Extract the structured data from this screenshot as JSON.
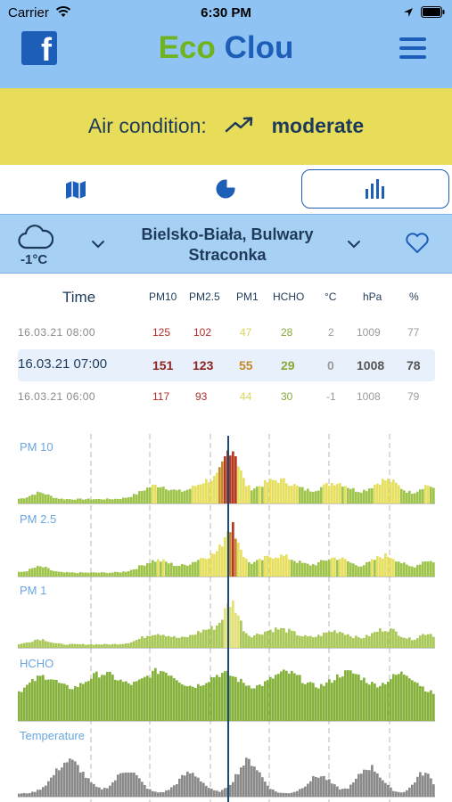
{
  "status": {
    "carrier": "Carrier",
    "time": "6:30 PM"
  },
  "header": {
    "logo_part1": "Eco",
    "logo_part2": "Clou",
    "facebook_letter": "f"
  },
  "banner": {
    "label": "Air condition:",
    "value": "moderate"
  },
  "location": {
    "temperature": "-1°C",
    "station_line1": "Bielsko-Biała, Bulwary",
    "station_line2": "Straconka"
  },
  "table": {
    "headers": [
      "Time",
      "PM10",
      "PM2.5",
      "PM1",
      "HCHO",
      "°C",
      "hPa",
      "%"
    ],
    "rows": [
      {
        "time": "16.03.21  08:00",
        "pm10": "125",
        "pm25": "102",
        "pm1": "47",
        "hcho": "28",
        "temp": "2",
        "hpa": "1009",
        "hum": "77"
      },
      {
        "time": "16.03.21  07:00",
        "pm10": "151",
        "pm25": "123",
        "pm1": "55",
        "hcho": "29",
        "temp": "0",
        "hpa": "1008",
        "hum": "78"
      },
      {
        "time": "16.03.21  06:00",
        "pm10": "117",
        "pm25": "93",
        "pm1": "44",
        "hcho": "30",
        "temp": "-1",
        "hpa": "1008",
        "hum": "79"
      }
    ]
  },
  "charts": {
    "labels": [
      "PM 10",
      "PM 2.5",
      "PM 1",
      "HCHO",
      "Temperature"
    ]
  },
  "colors": {
    "header_bg": "#8fc3f3",
    "banner_bg": "#e8dd59",
    "brand_blue": "#1d5fb8",
    "brand_green": "#6fb41f",
    "cursor_line": "#1a4a7a"
  }
}
